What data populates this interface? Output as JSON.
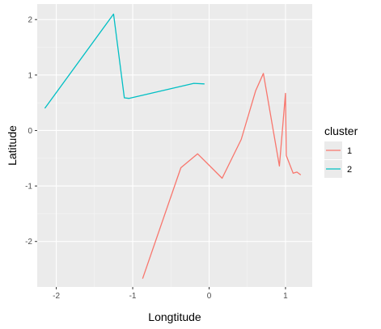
{
  "chart_data": {
    "type": "line",
    "xlabel": "Longtitude",
    "ylabel": "Latitude",
    "xlim": [
      -2.25,
      1.35
    ],
    "ylim": [
      -2.82,
      2.28
    ],
    "x_ticks": [
      -2,
      -1,
      0,
      1
    ],
    "y_ticks": [
      -2,
      -1,
      0,
      1,
      2
    ],
    "grid": true,
    "legend": {
      "title": "cluster",
      "position": "right",
      "entries": [
        "1",
        "2"
      ]
    },
    "series": [
      {
        "name": "1",
        "color": "#F8766D",
        "x": [
          -0.87,
          -0.37,
          -0.15,
          0.17,
          0.42,
          0.61,
          0.71,
          0.92,
          1.0,
          1.01,
          1.1,
          1.15,
          1.2
        ],
        "y": [
          -2.67,
          -0.67,
          -0.42,
          -0.86,
          -0.16,
          0.72,
          1.03,
          -0.64,
          0.67,
          -0.45,
          -0.77,
          -0.75,
          -0.8
        ]
      },
      {
        "name": "2",
        "color": "#00BFC4",
        "x": [
          -2.15,
          -1.25,
          -1.11,
          -1.05,
          -0.2,
          -0.06
        ],
        "y": [
          0.4,
          2.1,
          0.59,
          0.58,
          0.85,
          0.84
        ]
      }
    ]
  }
}
